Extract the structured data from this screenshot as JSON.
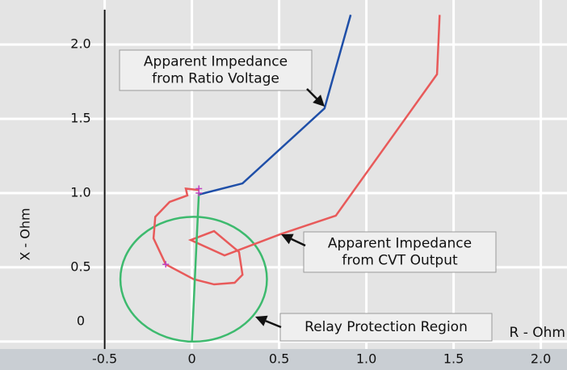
{
  "chart_data": {
    "type": "line",
    "xlabel": "R - Ohm",
    "ylabel": "X - Ohm",
    "xlim": [
      -1.1,
      2.15
    ],
    "ylim": [
      -0.05,
      2.3
    ],
    "xticks": [
      -0.5,
      0,
      0.5,
      {
        "value": 1,
        "label": "1.0"
      },
      1.5,
      {
        "value": 2,
        "label": "2.0"
      }
    ],
    "yticks": [
      0,
      0.5,
      {
        "value": 1,
        "label": "1.0"
      },
      1.5,
      {
        "value": 2,
        "label": "2.0"
      }
    ],
    "grid": true,
    "series": [
      {
        "name": "Apparent Impedance from Ratio Voltage",
        "color": "#1f4fa8",
        "x": [
          0.04,
          0.29,
          0.76,
          0.91
        ],
        "y": [
          0.99,
          1.065,
          1.57,
          2.2
        ]
      },
      {
        "name": "Apparent Impedance from CVT Output",
        "color": "#e85a5a",
        "x": [
          0.04,
          -0.035,
          -0.026,
          -0.128,
          -0.21,
          -0.22,
          -0.15,
          0.01,
          0.127,
          0.245,
          0.29,
          0.27,
          0.127,
          -0.007,
          0.187,
          0.507,
          0.825,
          1.405,
          1.42
        ],
        "y": [
          1.02,
          1.03,
          0.984,
          0.94,
          0.84,
          0.695,
          0.52,
          0.42,
          0.385,
          0.396,
          0.45,
          0.603,
          0.744,
          0.684,
          0.58,
          0.723,
          0.848,
          1.8,
          2.2
        ]
      },
      {
        "name": "Relay Protection Region",
        "color": "#3dba6e",
        "x": [
          0,
          0.04
        ],
        "y": [
          0,
          1.0
        ]
      }
    ],
    "circle": {
      "color": "#3dba6e",
      "center": [
        0.01,
        0.42
      ],
      "radius": 0.42
    },
    "markers": {
      "color": "#c040c0",
      "x": [
        0.04,
        0.04,
        -0.15
      ],
      "y": [
        1.03,
        1.0,
        0.52
      ]
    },
    "annotations": [
      {
        "lines": [
          "Apparent Impedance",
          "from Ratio Voltage"
        ]
      },
      {
        "lines": [
          "Apparent Impedance",
          "from CVT Output"
        ]
      },
      {
        "lines": [
          "Relay Protection Region"
        ]
      }
    ]
  }
}
